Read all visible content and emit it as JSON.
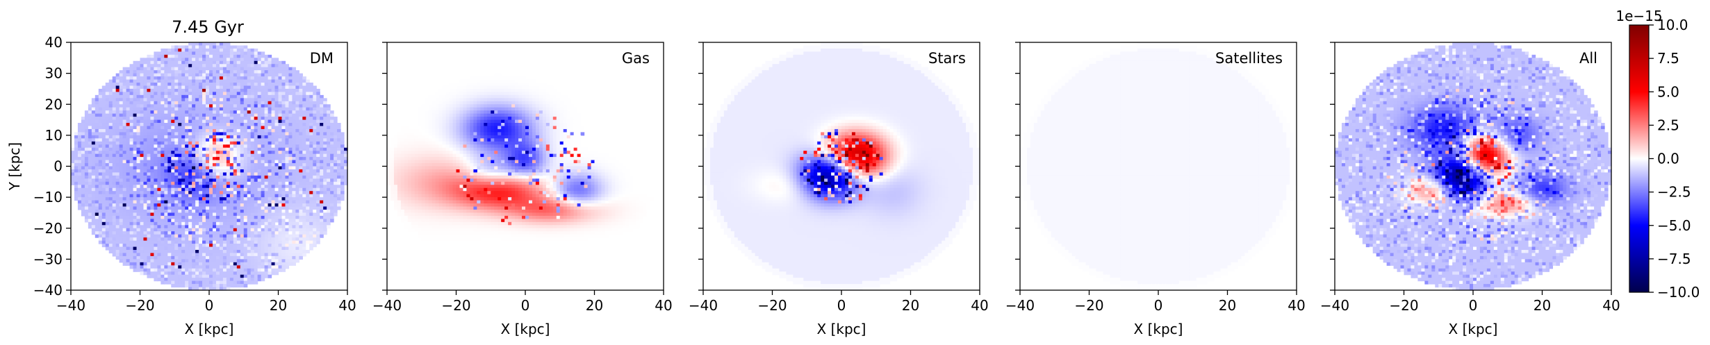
{
  "figure": {
    "title": "7.45 Gyr",
    "colorbar": {
      "scale_label": "1e−15",
      "range": [
        -10.0,
        10.0
      ],
      "ticks": [
        -10.0,
        -7.5,
        -5.0,
        -2.5,
        0.0,
        2.5,
        5.0,
        7.5,
        10.0
      ],
      "tick_labels": [
        "−10.0",
        "−7.5",
        "−5.0",
        "−2.5",
        "0.0",
        "2.5",
        "5.0",
        "7.5",
        "10.0"
      ],
      "colormap": "seismic"
    }
  },
  "chart_data": {
    "type": "heatmap",
    "xlim": [
      -40,
      40
    ],
    "ylim": [
      -40,
      40
    ],
    "xlabel": "X [kpc]",
    "ylabel": "Y [kpc]",
    "x_ticks": [
      -40,
      -20,
      0,
      20,
      40
    ],
    "x_tick_labels": [
      "−40",
      "−20",
      "0",
      "20",
      "40"
    ],
    "y_ticks": [
      -40,
      -30,
      -20,
      -10,
      0,
      10,
      20,
      30,
      40
    ],
    "y_tick_labels": [
      "−40",
      "−30",
      "−20",
      "−10",
      "0",
      "10",
      "20",
      "30",
      "40"
    ],
    "value_range": [
      -1e-14,
      1e-14
    ],
    "panels": [
      {
        "label": "DM",
        "summary": "mostly weak negative (blue) disc with noisy mixed red/blue pixels near centre"
      },
      {
        "label": "Gas",
        "summary": "blue structures above centre, red arc below centre spanning x -20 to 15 kpc"
      },
      {
        "label": "Stars",
        "summary": "compact central dipole: red upper-right, blue lower-left within ~10 kpc"
      },
      {
        "label": "Satellites",
        "summary": "near zero everywhere"
      },
      {
        "label": "All",
        "summary": "combined: central red/blue dipole, blue ring-like region, red arc below"
      }
    ]
  }
}
